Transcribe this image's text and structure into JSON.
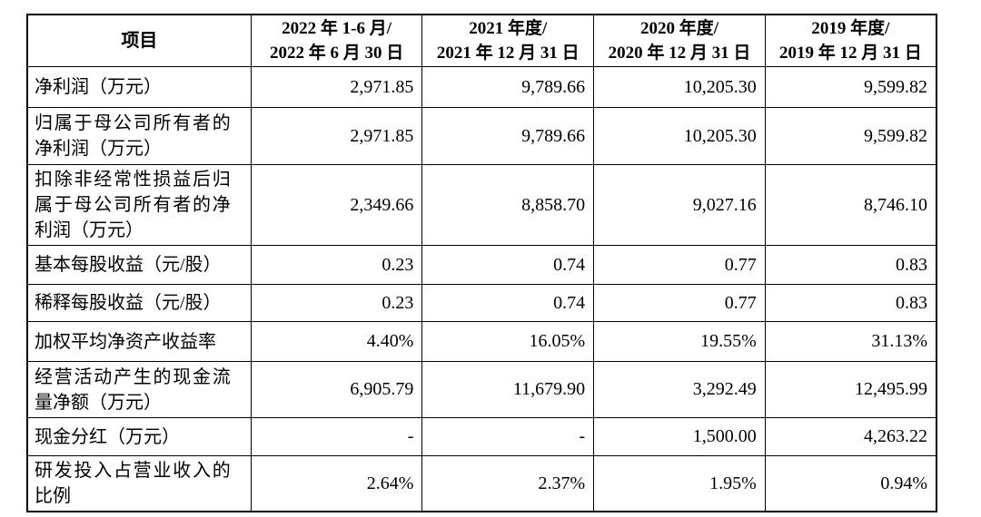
{
  "table": {
    "header": {
      "item_label": "项目",
      "periods": [
        {
          "line1": "2022 年 1-6 月/",
          "line2": "2022 年 6 月 30 日"
        },
        {
          "line1": "2021 年度/",
          "line2": "2021 年 12 月 31 日"
        },
        {
          "line1": "2020 年度/",
          "line2": "2020 年 12 月 31 日"
        },
        {
          "line1": "2019 年度/",
          "line2": "2019 年 12 月 31 日"
        }
      ]
    },
    "rows": [
      {
        "label": "净利润（万元）",
        "values": [
          "2,971.85",
          "9,789.66",
          "10,205.30",
          "9,599.82"
        ]
      },
      {
        "label": "归属于母公司所有者的净利润（万元）",
        "values": [
          "2,971.85",
          "9,789.66",
          "10,205.30",
          "9,599.82"
        ]
      },
      {
        "label": "扣除非经常性损益后归属于母公司所有者的净利润（万元）",
        "values": [
          "2,349.66",
          "8,858.70",
          "9,027.16",
          "8,746.10"
        ]
      },
      {
        "label": "基本每股收益（元/股）",
        "values": [
          "0.23",
          "0.74",
          "0.77",
          "0.83"
        ]
      },
      {
        "label": "稀释每股收益（元/股）",
        "values": [
          "0.23",
          "0.74",
          "0.77",
          "0.83"
        ]
      },
      {
        "label": "加权平均净资产收益率",
        "values": [
          "4.40%",
          "16.05%",
          "19.55%",
          "31.13%"
        ]
      },
      {
        "label": "经营活动产生的现金流量净额（万元）",
        "values": [
          "6,905.79",
          "11,679.90",
          "3,292.49",
          "12,495.99"
        ]
      },
      {
        "label": "现金分红（万元）",
        "values": [
          "-",
          "-",
          "1,500.00",
          "4,263.22"
        ]
      },
      {
        "label": "研发投入占营业收入的比例",
        "values": [
          "2.64%",
          "2.37%",
          "1.95%",
          "0.94%"
        ]
      }
    ]
  }
}
